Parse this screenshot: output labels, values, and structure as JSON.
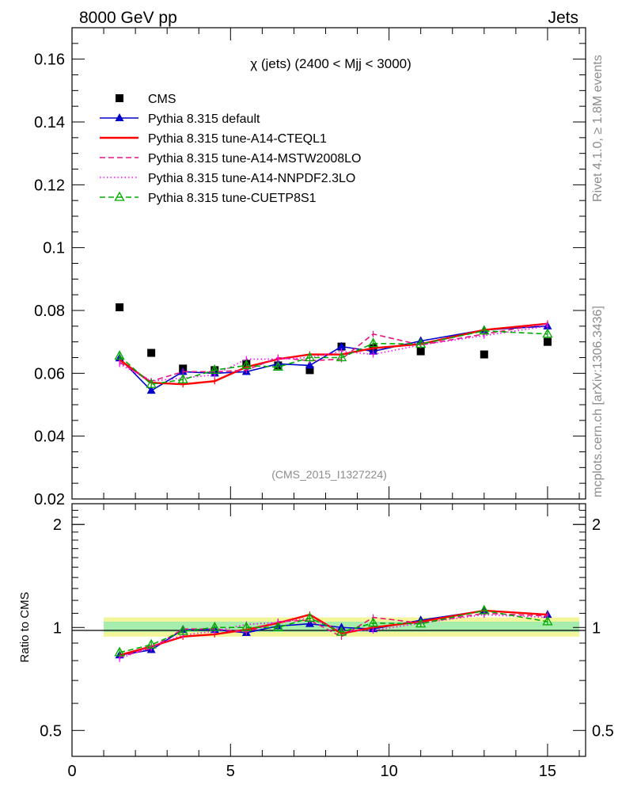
{
  "header": {
    "left": "8000 GeV pp",
    "right": "Jets"
  },
  "side_labels": {
    "rivet": "Rivet 4.1.0, ≥ 1.8M events",
    "mcplots": "mcplots.cern.ch [arXiv:1306.3436]"
  },
  "watermark": "(CMS_2015_I1327224)",
  "chart_data": [
    {
      "type": "line",
      "title": "χ (jets) (2400 < Mjj < 3000)",
      "xlabel": "",
      "ylabel": "",
      "xlim": [
        0,
        16.2
      ],
      "ylim": [
        0.02,
        0.17
      ],
      "grid": false,
      "legend_position": "top-left",
      "x": [
        1.5,
        2.5,
        3.5,
        4.5,
        5.5,
        6.5,
        7.5,
        8.5,
        9.5,
        11,
        13,
        15
      ],
      "yticks": [
        {
          "v": 0.02,
          "label": "0.02"
        },
        {
          "v": 0.04,
          "label": "0.04"
        },
        {
          "v": 0.06,
          "label": "0.06"
        },
        {
          "v": 0.08,
          "label": "0.08"
        },
        {
          "v": 0.1,
          "label": "0.1"
        },
        {
          "v": 0.12,
          "label": "0.12"
        },
        {
          "v": 0.14,
          "label": "0.14"
        },
        {
          "v": 0.16,
          "label": "0.16"
        }
      ],
      "series": [
        {
          "name": "CMS",
          "color": "#000000",
          "marker": "square",
          "line": "none",
          "values": [
            0.081,
            0.0665,
            0.0615,
            0.061,
            0.063,
            0.0625,
            0.061,
            0.0685,
            0.068,
            0.067,
            0.066,
            0.07
          ]
        },
        {
          "name": "Pythia 8.315 default",
          "color": "#0000cc",
          "marker": "triangle",
          "line": "solid",
          "values": [
            0.0648,
            0.0545,
            0.0605,
            0.06,
            0.0605,
            0.063,
            0.0625,
            0.0685,
            0.067,
            0.0703,
            0.0738,
            0.075
          ]
        },
        {
          "name": "Pythia 8.315 tune-A14-CTEQL1",
          "color": "#ff0000",
          "marker": "none",
          "line": "solid-thick",
          "values": [
            0.0643,
            0.057,
            0.0565,
            0.0575,
            0.062,
            0.0645,
            0.066,
            0.066,
            0.068,
            0.0693,
            0.0738,
            0.0758
          ]
        },
        {
          "name": "Pythia 8.315 tune-A14-MSTW2008LO",
          "color": "#e8137f",
          "marker": "none",
          "line": "dashed",
          "values": [
            0.0635,
            0.0575,
            0.0605,
            0.0605,
            0.061,
            0.065,
            0.064,
            0.0645,
            0.0725,
            0.069,
            0.0725,
            0.0758
          ]
        },
        {
          "name": "Pythia 8.315 tune-A14-NNPDF2.3LO",
          "color": "#ff00ff",
          "marker": "none",
          "line": "dotted",
          "values": [
            0.063,
            0.0575,
            0.0585,
            0.0595,
            0.0645,
            0.0645,
            0.065,
            0.067,
            0.066,
            0.069,
            0.072,
            0.075
          ]
        },
        {
          "name": "Pythia 8.315 tune-CUETP8S1",
          "color": "#00aa00",
          "marker": "open-triangle",
          "line": "dashed",
          "values": [
            0.0655,
            0.0565,
            0.058,
            0.061,
            0.0625,
            0.062,
            0.065,
            0.065,
            0.0695,
            0.0693,
            0.0735,
            0.0725
          ]
        }
      ]
    },
    {
      "type": "line",
      "title": "",
      "xlabel": "",
      "ylabel": "Ratio to CMS",
      "xlim": [
        0,
        16.2
      ],
      "ylim": [
        0.42,
        2.3
      ],
      "ylog": true,
      "grid": false,
      "x": [
        1.5,
        2.5,
        3.5,
        4.5,
        5.5,
        6.5,
        7.5,
        8.5,
        9.5,
        11,
        13,
        15
      ],
      "xticks": [
        {
          "v": 0,
          "label": "0"
        },
        {
          "v": 5,
          "label": "5"
        },
        {
          "v": 10,
          "label": "10"
        },
        {
          "v": 15,
          "label": "15"
        }
      ],
      "yticks": [
        {
          "v": 0.5,
          "label": "0.5"
        },
        {
          "v": 1,
          "label": "1"
        },
        {
          "v": 2,
          "label": "2"
        }
      ],
      "bands": {
        "yellow": [
          0.94,
          1.07
        ],
        "green": [
          0.97,
          1.04
        ],
        "xrange": [
          1,
          16
        ]
      },
      "series": [
        {
          "name": "Pythia 8.315 default",
          "color": "#0000cc",
          "line": "solid",
          "marker": "triangle",
          "values": [
            0.83,
            0.86,
            0.985,
            0.985,
            0.965,
            1.01,
            1.025,
            1.0,
            0.99,
            1.05,
            1.12,
            1.09
          ]
        },
        {
          "name": "Pythia 8.315 tune-A14-CTEQL1",
          "color": "#ff0000",
          "line": "solid-thick",
          "marker": "none",
          "values": [
            0.83,
            0.88,
            0.94,
            0.955,
            0.985,
            1.03,
            1.09,
            0.96,
            1.0,
            1.04,
            1.12,
            1.09
          ]
        },
        {
          "name": "Pythia 8.315 tune-A14-MSTW2008LO",
          "color": "#e8137f",
          "line": "dashed",
          "marker": "none",
          "values": [
            0.82,
            0.87,
            0.99,
            0.99,
            0.97,
            1.04,
            1.05,
            0.94,
            1.07,
            1.03,
            1.1,
            1.08
          ]
        },
        {
          "name": "Pythia 8.315 tune-A14-NNPDF2.3LO",
          "color": "#ff00ff",
          "line": "dotted",
          "marker": "none",
          "values": [
            0.81,
            0.88,
            0.95,
            0.975,
            1.02,
            1.035,
            1.065,
            0.98,
            0.98,
            1.03,
            1.09,
            1.07
          ]
        },
        {
          "name": "Pythia 8.315 tune-CUETP8S1",
          "color": "#00aa00",
          "line": "dashed",
          "marker": "open-triangle",
          "values": [
            0.845,
            0.89,
            0.975,
            1.0,
            1.0,
            1.0,
            1.065,
            0.97,
            1.03,
            1.025,
            1.12,
            1.04
          ]
        }
      ]
    }
  ]
}
